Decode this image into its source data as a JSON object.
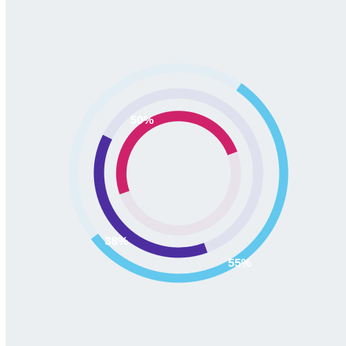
{
  "chart_data": {
    "type": "radial-progress",
    "rings": [
      {
        "label": "55%",
        "value": 55,
        "color": "#62c8ee",
        "track_color": "#e3edf4"
      },
      {
        "label": "38%",
        "value": 38,
        "color": "#4c2ea0",
        "track_color": "#dfe2ee"
      },
      {
        "label": "50%",
        "value": 50,
        "color": "#d0226a",
        "track_color": "#e8e3eb"
      }
    ]
  }
}
